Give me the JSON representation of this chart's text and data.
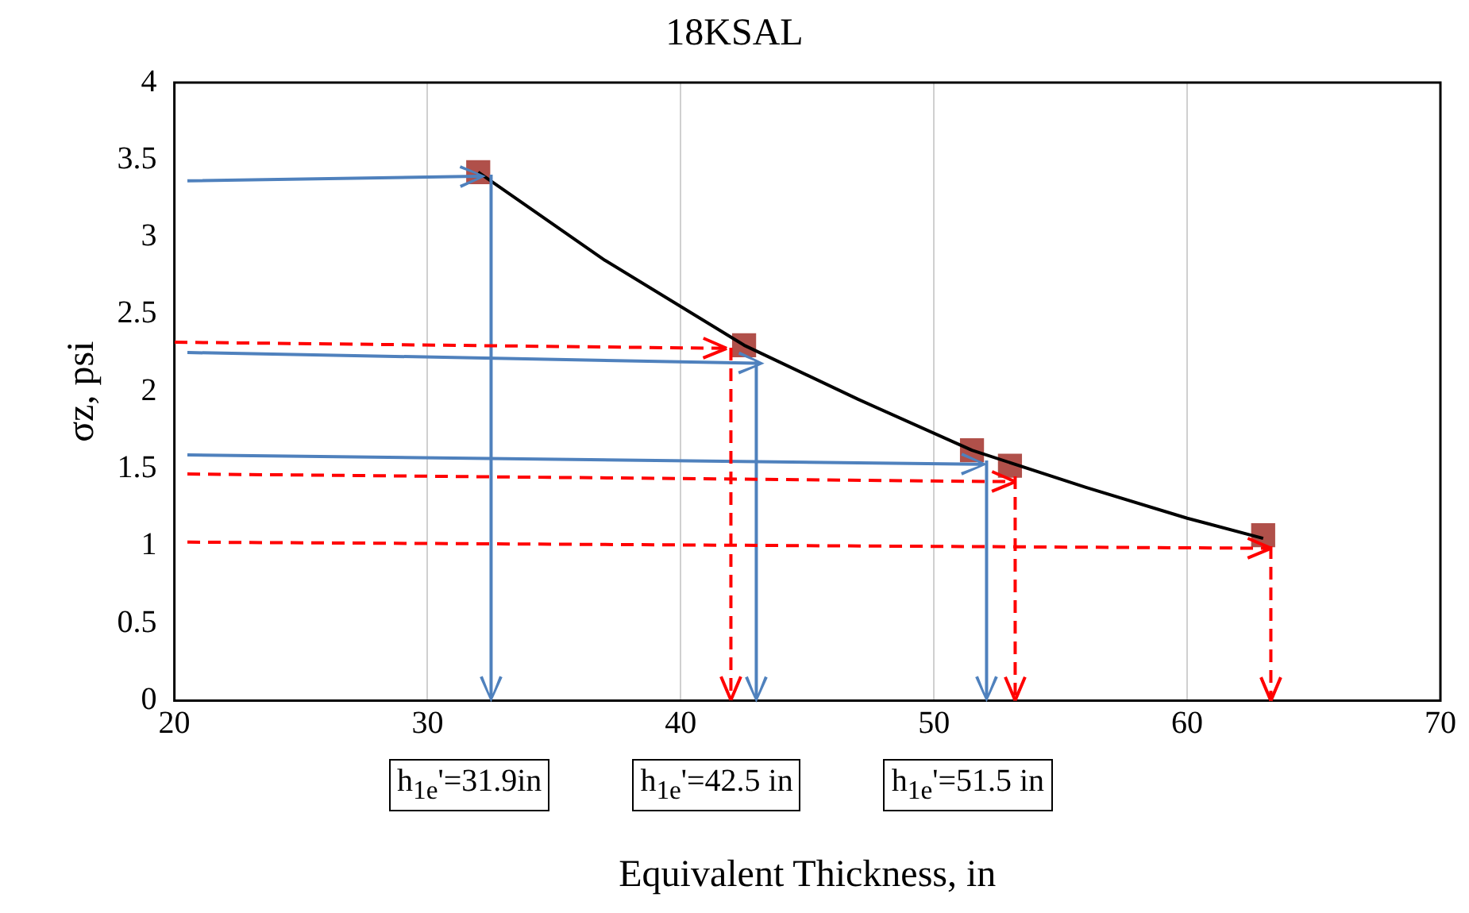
{
  "chart_data": {
    "type": "line",
    "title": "18KSAL",
    "xlabel": "Equivalent Thickness, in",
    "ylabel": "σz, psi",
    "xlim": [
      20,
      70
    ],
    "xticks": [
      20,
      30,
      40,
      50,
      60,
      70
    ],
    "ylim": [
      0,
      4
    ],
    "yticks": [
      0,
      0.5,
      1,
      1.5,
      2,
      2.5,
      3,
      3.5,
      4
    ],
    "grid": "x",
    "legend": false,
    "annotations": [
      "h$_{1e}$'=31.9in",
      "h$_{1e}$'=42.5 in",
      "h$_{1e}$'=51.5 in"
    ],
    "series": [
      {
        "color": "#000000",
        "marker": "none",
        "line_style": "solid",
        "x": [
          32,
          37,
          42.5,
          47,
          51.5,
          56,
          60,
          63
        ],
        "values": [
          3.42,
          2.85,
          2.3,
          1.95,
          1.62,
          1.38,
          1.18,
          1.05
        ]
      },
      {
        "type": "scatter",
        "color": "#b0504a",
        "marker": "square",
        "x": [
          32,
          42.5,
          51.5,
          53,
          63
        ],
        "values": [
          3.42,
          2.3,
          1.62,
          1.52,
          1.07
        ]
      }
    ]
  }
}
